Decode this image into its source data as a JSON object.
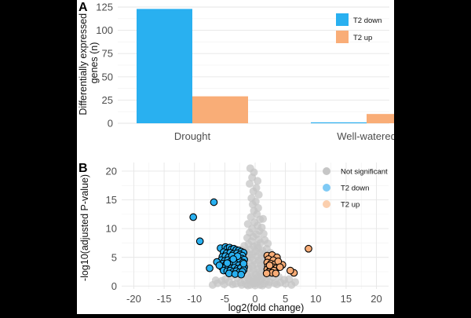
{
  "chart_data": [
    {
      "panel": "A",
      "type": "bar",
      "ylabel": "Differentially expressed genes (n)",
      "ylabel_lines": [
        "Differentially expressed",
        "genes (n)"
      ],
      "xlabel": "",
      "ylim": [
        0,
        125
      ],
      "yticks": [
        0,
        25,
        50,
        75,
        100,
        125
      ],
      "categories": [
        "Drought",
        "Well-watered"
      ],
      "series": [
        {
          "name": "T2 down",
          "color": "#29b0f0",
          "values": [
            123,
            1
          ]
        },
        {
          "name": "T2 up",
          "color": "#f9ad77",
          "values": [
            29,
            10
          ]
        }
      ],
      "legend": [
        "T2 down",
        "T2 up"
      ],
      "legend_position": "top-right"
    },
    {
      "panel": "B",
      "type": "scatter",
      "xlabel": "log2(fold change)",
      "ylabel": "-log10(adjusted P-value)",
      "xlim": [
        -22,
        22
      ],
      "ylim": [
        -0.5,
        21.5
      ],
      "xticks": [
        -20,
        -15,
        -10,
        -5,
        0,
        5,
        10,
        15,
        20
      ],
      "yticks": [
        0,
        5,
        10,
        15,
        20
      ],
      "legend": [
        {
          "name": "Not significant",
          "color": "#c6c6c6"
        },
        {
          "name": "T2 down",
          "color": "#7fcaf5"
        },
        {
          "name": "T2 up",
          "color": "#fbcfae"
        }
      ],
      "legend_position": "top-right",
      "series": [
        {
          "name": "Not significant",
          "color": "#c6c6c6",
          "points": [
            [
              -0.8,
              20.5
            ],
            [
              -0.2,
              19.8
            ],
            [
              -0.5,
              18.9
            ],
            [
              0.4,
              18.3
            ],
            [
              -0.9,
              17.8
            ],
            [
              0.2,
              17.1
            ],
            [
              -0.3,
              16.5
            ],
            [
              0.6,
              15.9
            ],
            [
              -0.6,
              15.3
            ],
            [
              0.1,
              14.7
            ],
            [
              -0.4,
              14.2
            ],
            [
              0.5,
              13.6
            ],
            [
              -0.2,
              13.1
            ],
            [
              0.3,
              12.5
            ],
            [
              -0.7,
              12.0
            ],
            [
              0.8,
              11.6
            ],
            [
              -0.1,
              11.1
            ],
            [
              1.3,
              11.7
            ],
            [
              -1.2,
              10.8
            ],
            [
              0.4,
              10.5
            ],
            [
              -0.5,
              10.0
            ],
            [
              0.7,
              9.6
            ],
            [
              1.1,
              10.2
            ],
            [
              -0.9,
              9.3
            ],
            [
              0.2,
              9.0
            ],
            [
              -0.3,
              8.6
            ],
            [
              1.4,
              9.1
            ],
            [
              -1.3,
              8.4
            ],
            [
              0.6,
              8.1
            ],
            [
              -0.6,
              7.8
            ],
            [
              0.9,
              7.5
            ],
            [
              -1.1,
              7.3
            ],
            [
              1.6,
              8.0
            ],
            [
              0.3,
              7.1
            ],
            [
              -0.2,
              6.9
            ],
            [
              2.1,
              7.4
            ],
            [
              -1.8,
              7.0
            ],
            [
              0.5,
              6.6
            ],
            [
              -0.8,
              6.4
            ],
            [
              1.2,
              6.2
            ],
            [
              -1.5,
              6.1
            ],
            [
              0.1,
              6.0
            ],
            [
              1.9,
              6.5
            ],
            [
              -2.2,
              6.3
            ],
            [
              0.8,
              5.8
            ],
            [
              -0.4,
              5.6
            ],
            [
              1.5,
              5.5
            ],
            [
              -1.0,
              5.4
            ],
            [
              2.5,
              5.8
            ],
            [
              -2.6,
              5.6
            ],
            [
              0.3,
              5.2
            ],
            [
              -0.7,
              5.0
            ],
            [
              1.0,
              4.9
            ],
            [
              -1.3,
              4.8
            ],
            [
              2.0,
              4.7
            ],
            [
              -1.9,
              4.6
            ],
            [
              0.6,
              4.5
            ],
            [
              -0.2,
              4.4
            ],
            [
              1.4,
              4.3
            ],
            [
              -2.5,
              4.2
            ],
            [
              2.8,
              4.1
            ],
            [
              -0.9,
              4.0
            ],
            [
              0.2,
              3.9
            ],
            [
              1.7,
              3.8
            ],
            [
              -1.6,
              3.7
            ],
            [
              0.9,
              3.6
            ],
            [
              -0.5,
              3.5
            ],
            [
              2.3,
              3.4
            ],
            [
              -2.1,
              3.3
            ],
            [
              1.2,
              3.2
            ],
            [
              -1.1,
              3.1
            ],
            [
              0.4,
              3.0
            ],
            [
              -0.3,
              2.9
            ],
            [
              1.6,
              2.8
            ],
            [
              -1.8,
              2.7
            ],
            [
              2.6,
              2.6
            ],
            [
              -2.7,
              2.5
            ],
            [
              0.7,
              2.4
            ],
            [
              -0.7,
              2.3
            ],
            [
              1.1,
              2.2
            ],
            [
              -1.4,
              2.1
            ],
            [
              0.1,
              2.0
            ],
            [
              2.1,
              1.9
            ],
            [
              -2.3,
              1.8
            ],
            [
              0.5,
              1.7
            ],
            [
              -0.6,
              1.6
            ],
            [
              1.3,
              1.5
            ],
            [
              -1.2,
              1.4
            ],
            [
              2.9,
              1.5
            ],
            [
              -2.9,
              1.4
            ],
            [
              0.3,
              1.3
            ],
            [
              -0.1,
              1.2
            ],
            [
              1.0,
              1.1
            ],
            [
              -0.9,
              1.0
            ],
            [
              1.8,
              0.9
            ],
            [
              -1.7,
              0.9
            ],
            [
              0.6,
              0.8
            ],
            [
              -0.4,
              0.7
            ],
            [
              2.4,
              0.7
            ],
            [
              -2.4,
              0.6
            ],
            [
              0.2,
              0.5
            ],
            [
              -0.2,
              0.4
            ],
            [
              1.5,
              0.4
            ],
            [
              -1.5,
              0.3
            ],
            [
              3.2,
              0.5
            ],
            [
              -3.2,
              0.4
            ],
            [
              0.8,
              0.2
            ],
            [
              -0.8,
              0.2
            ],
            [
              3.6,
              0.3
            ],
            [
              -3.7,
              0.3
            ],
            [
              4.2,
              0.6
            ],
            [
              -4.3,
              0.7
            ],
            [
              5.0,
              0.4
            ],
            [
              -5.1,
              0.3
            ],
            [
              6.0,
              0.2
            ],
            [
              -6.2,
              0.5
            ],
            [
              -7.0,
              0.2
            ],
            [
              4.8,
              1.1
            ],
            [
              -4.9,
              1.2
            ],
            [
              3.9,
              1.6
            ],
            [
              -3.9,
              1.7
            ],
            [
              0.0,
              0.1
            ],
            [
              1.2,
              0.1
            ],
            [
              -1.2,
              0.1
            ],
            [
              2.2,
              0.2
            ],
            [
              -2.2,
              0.2
            ],
            [
              5.6,
              1.2
            ],
            [
              -5.5,
              0.9
            ],
            [
              6.6,
              0.7
            ],
            [
              -6.5,
              1.0
            ]
          ]
        },
        {
          "name": "T2 down",
          "color": "#29b0f0",
          "points": [
            [
              -6.8,
              14.6
            ],
            [
              -10.2,
              12.0
            ],
            [
              -9.1,
              7.8
            ],
            [
              -5.7,
              6.6
            ],
            [
              -4.9,
              6.8
            ],
            [
              -4.6,
              6.5
            ],
            [
              -4.2,
              6.7
            ],
            [
              -3.9,
              6.4
            ],
            [
              -3.5,
              6.5
            ],
            [
              -3.1,
              6.3
            ],
            [
              -2.7,
              6.2
            ],
            [
              -2.3,
              6.0
            ],
            [
              -1.9,
              5.8
            ],
            [
              -5.2,
              5.9
            ],
            [
              -4.7,
              5.7
            ],
            [
              -4.1,
              5.8
            ],
            [
              -3.6,
              5.6
            ],
            [
              -3.0,
              5.7
            ],
            [
              -2.5,
              5.5
            ],
            [
              -2.1,
              5.3
            ],
            [
              -5.4,
              5.1
            ],
            [
              -4.9,
              5.2
            ],
            [
              -4.4,
              5.0
            ],
            [
              -3.8,
              5.1
            ],
            [
              -3.3,
              4.9
            ],
            [
              -2.8,
              5.0
            ],
            [
              -2.2,
              4.8
            ],
            [
              -1.8,
              4.6
            ],
            [
              -5.6,
              4.5
            ],
            [
              -5.0,
              4.4
            ],
            [
              -4.5,
              4.5
            ],
            [
              -4.0,
              4.3
            ],
            [
              -3.5,
              4.4
            ],
            [
              -3.0,
              4.2
            ],
            [
              -2.5,
              4.3
            ],
            [
              -2.0,
              4.1
            ],
            [
              -5.3,
              3.9
            ],
            [
              -4.8,
              3.8
            ],
            [
              -4.3,
              3.9
            ],
            [
              -3.7,
              3.7
            ],
            [
              -3.2,
              3.8
            ],
            [
              -2.7,
              3.6
            ],
            [
              -2.1,
              3.5
            ],
            [
              -1.8,
              3.3
            ],
            [
              -5.5,
              3.3
            ],
            [
              -4.9,
              3.2
            ],
            [
              -4.4,
              3.3
            ],
            [
              -3.9,
              3.1
            ],
            [
              -3.4,
              3.2
            ],
            [
              -2.9,
              3.0
            ],
            [
              -2.4,
              3.1
            ],
            [
              -1.9,
              2.8
            ],
            [
              -5.2,
              2.7
            ],
            [
              -4.6,
              2.6
            ],
            [
              -4.1,
              2.7
            ],
            [
              -3.6,
              2.5
            ],
            [
              -3.1,
              2.6
            ],
            [
              -2.6,
              2.4
            ],
            [
              -2.1,
              2.5
            ],
            [
              -7.5,
              3.1
            ],
            [
              -6.3,
              4.2
            ],
            [
              -5.9,
              3.6
            ],
            [
              -4.3,
              2.2
            ],
            [
              -3.3,
              2.1
            ],
            [
              -2.3,
              2.0
            ],
            [
              -3.8,
              5.3
            ],
            [
              -2.9,
              5.2
            ],
            [
              -4.6,
              4.0
            ],
            [
              -1.9,
              3.9
            ],
            [
              -3.6,
              4.7
            ]
          ]
        },
        {
          "name": "T2 up",
          "color": "#f9ad77",
          "points": [
            [
              8.8,
              6.5
            ],
            [
              6.4,
              2.3
            ],
            [
              5.8,
              2.7
            ],
            [
              4.5,
              3.7
            ],
            [
              2.0,
              5.3
            ],
            [
              2.8,
              5.4
            ],
            [
              3.6,
              5.0
            ],
            [
              2.2,
              4.7
            ],
            [
              3.0,
              4.5
            ],
            [
              2.0,
              4.1
            ],
            [
              2.6,
              3.9
            ],
            [
              3.3,
              3.8
            ],
            [
              2.1,
              3.4
            ],
            [
              2.9,
              3.3
            ],
            [
              3.5,
              3.1
            ],
            [
              2.0,
              2.9
            ],
            [
              2.5,
              2.8
            ],
            [
              3.1,
              2.7
            ],
            [
              2.2,
              2.4
            ],
            [
              2.8,
              2.3
            ],
            [
              1.9,
              2.2
            ],
            [
              3.4,
              2.2
            ],
            [
              2.4,
              3.6
            ],
            [
              3.8,
              4.3
            ],
            [
              4.1,
              3.3
            ]
          ]
        }
      ]
    }
  ]
}
